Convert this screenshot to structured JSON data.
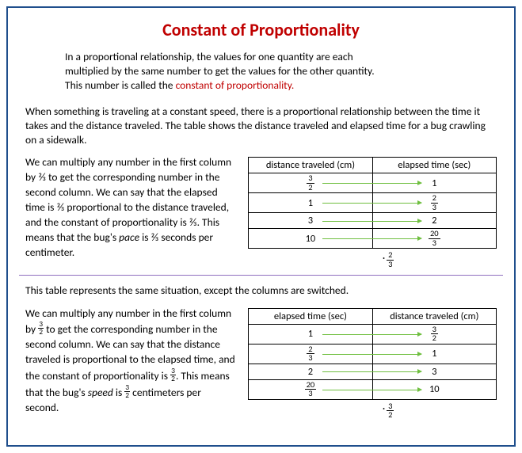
{
  "title": "Constant of Proportionality",
  "intro_lines": [
    "In a proportional  relationship, the values for one quantity are each",
    "multiplied by the same number  to get the values for the other  quantity.",
    "This number  is called the "
  ],
  "intro_redterm": "constant of proportionality.",
  "para2": "When something  is traveling at a constant speed, there is a proportional  relationship between the time it takes and the distance traveled. The table shows the distance traveled and elapsed time for a bug crawling on a sidewalk.",
  "section1": {
    "text_pre": "We can multiply any number  in the first column  by  ⅔  to get the corresponding number in the second column.   We can say that the elapsed time is ⅔ proportional  to the distance traveled, and the constant of proportionality  is ⅔. This means that the bug's ",
    "text_em": "pace",
    "text_post": " is ⅔ seconds per centimeter.",
    "table": {
      "headers": [
        "distance traveled (cm)",
        "elapsed time (sec)"
      ],
      "rows": [
        {
          "left": {
            "type": "frac",
            "n": "3",
            "d": "2"
          },
          "right": {
            "type": "plain",
            "v": "1"
          }
        },
        {
          "left": {
            "type": "plain",
            "v": "1"
          },
          "right": {
            "type": "frac",
            "n": "2",
            "d": "3"
          }
        },
        {
          "left": {
            "type": "plain",
            "v": "3"
          },
          "right": {
            "type": "plain",
            "v": "2"
          }
        },
        {
          "left": {
            "type": "plain",
            "v": "10"
          },
          "right": {
            "type": "frac",
            "n": "20",
            "d": "3"
          }
        }
      ],
      "multiplier": {
        "n": "2",
        "d": "3"
      }
    }
  },
  "midline": "This table represents the same situation, except the columns are switched.",
  "section2": {
    "text_pre": "We can multiply any number  in the first column by ",
    "text_frac1": {
      "n": "3",
      "d": "2"
    },
    "text_mid": " to get the corresponding number in the second column.   We can say that the distance traveled is proportional to the elapsed time, and the constant of proportionality  is ",
    "text_frac2": {
      "n": "3",
      "d": "2"
    },
    "text_post1": ". This means that the bug's ",
    "text_em": "speed",
    "text_post2": " is ",
    "text_frac3": {
      "n": "3",
      "d": "2"
    },
    "text_post3": " centimeters per second.",
    "table": {
      "headers": [
        "elapsed time (sec)",
        "distance traveled (cm)"
      ],
      "rows": [
        {
          "left": {
            "type": "plain",
            "v": "1"
          },
          "right": {
            "type": "frac",
            "n": "3",
            "d": "2"
          }
        },
        {
          "left": {
            "type": "frac",
            "n": "2",
            "d": "3"
          },
          "right": {
            "type": "plain",
            "v": "1"
          }
        },
        {
          "left": {
            "type": "plain",
            "v": "2"
          },
          "right": {
            "type": "plain",
            "v": "3"
          }
        },
        {
          "left": {
            "type": "frac",
            "n": "20",
            "d": "3"
          },
          "right": {
            "type": "plain",
            "v": "10"
          }
        }
      ],
      "multiplier": {
        "n": "3",
        "d": "2"
      }
    }
  },
  "colors": {
    "border": "#1f4e8c",
    "title": "#c00000",
    "arrow": "#6fbf3f",
    "divider": "#9070c0"
  }
}
